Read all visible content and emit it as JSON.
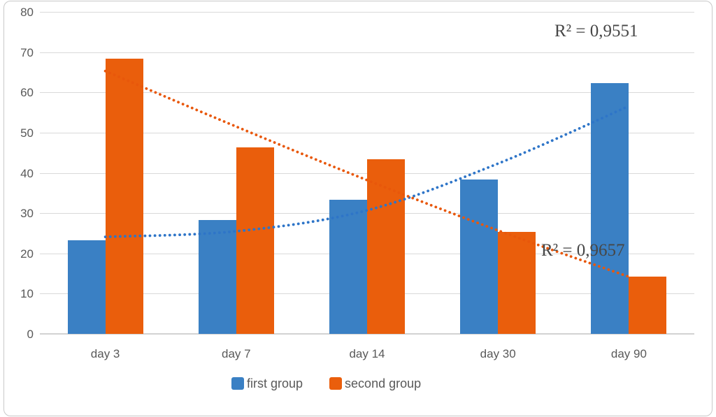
{
  "chart_data": {
    "type": "bar",
    "title": "",
    "xlabel": "",
    "ylabel": "",
    "categories": [
      "day 3",
      "day 7",
      "day 14",
      "day 30",
      "day 90"
    ],
    "series": [
      {
        "name": "first group",
        "color": "#3a80c4",
        "values": [
          23.3,
          28.3,
          33.3,
          38.3,
          62.3
        ]
      },
      {
        "name": "second group",
        "color": "#ea5e0c",
        "values": [
          68.3,
          46.3,
          43.3,
          25.3,
          14.3
        ]
      }
    ],
    "yticks": [
      0,
      10,
      20,
      30,
      40,
      50,
      60,
      70,
      80
    ],
    "ylim": [
      0,
      80
    ],
    "grid": "horizontal",
    "legend_position": "bottom",
    "decimal_separator": ",",
    "trendlines": [
      {
        "series": "first group",
        "style": "dotted",
        "color": "#2e75c8",
        "r_squared_label": "R² = 0,9551",
        "values_at_categories": [
          24.1,
          25.5,
          30.7,
          42.3,
          56.6
        ]
      },
      {
        "series": "second group",
        "style": "dotted",
        "color": "#e8570b",
        "r_squared_label": "R² = 0,9657",
        "values_at_categories": [
          65.3,
          51.5,
          38.2,
          25.7,
          14.2
        ]
      }
    ]
  },
  "annotations": {
    "r2_first": "R² = 0,9551",
    "r2_second": "R² = 0,9657"
  },
  "legend": {
    "items": [
      {
        "label": "first group",
        "color": "#3a80c4"
      },
      {
        "label": "second group",
        "color": "#ea5e0c"
      }
    ]
  }
}
